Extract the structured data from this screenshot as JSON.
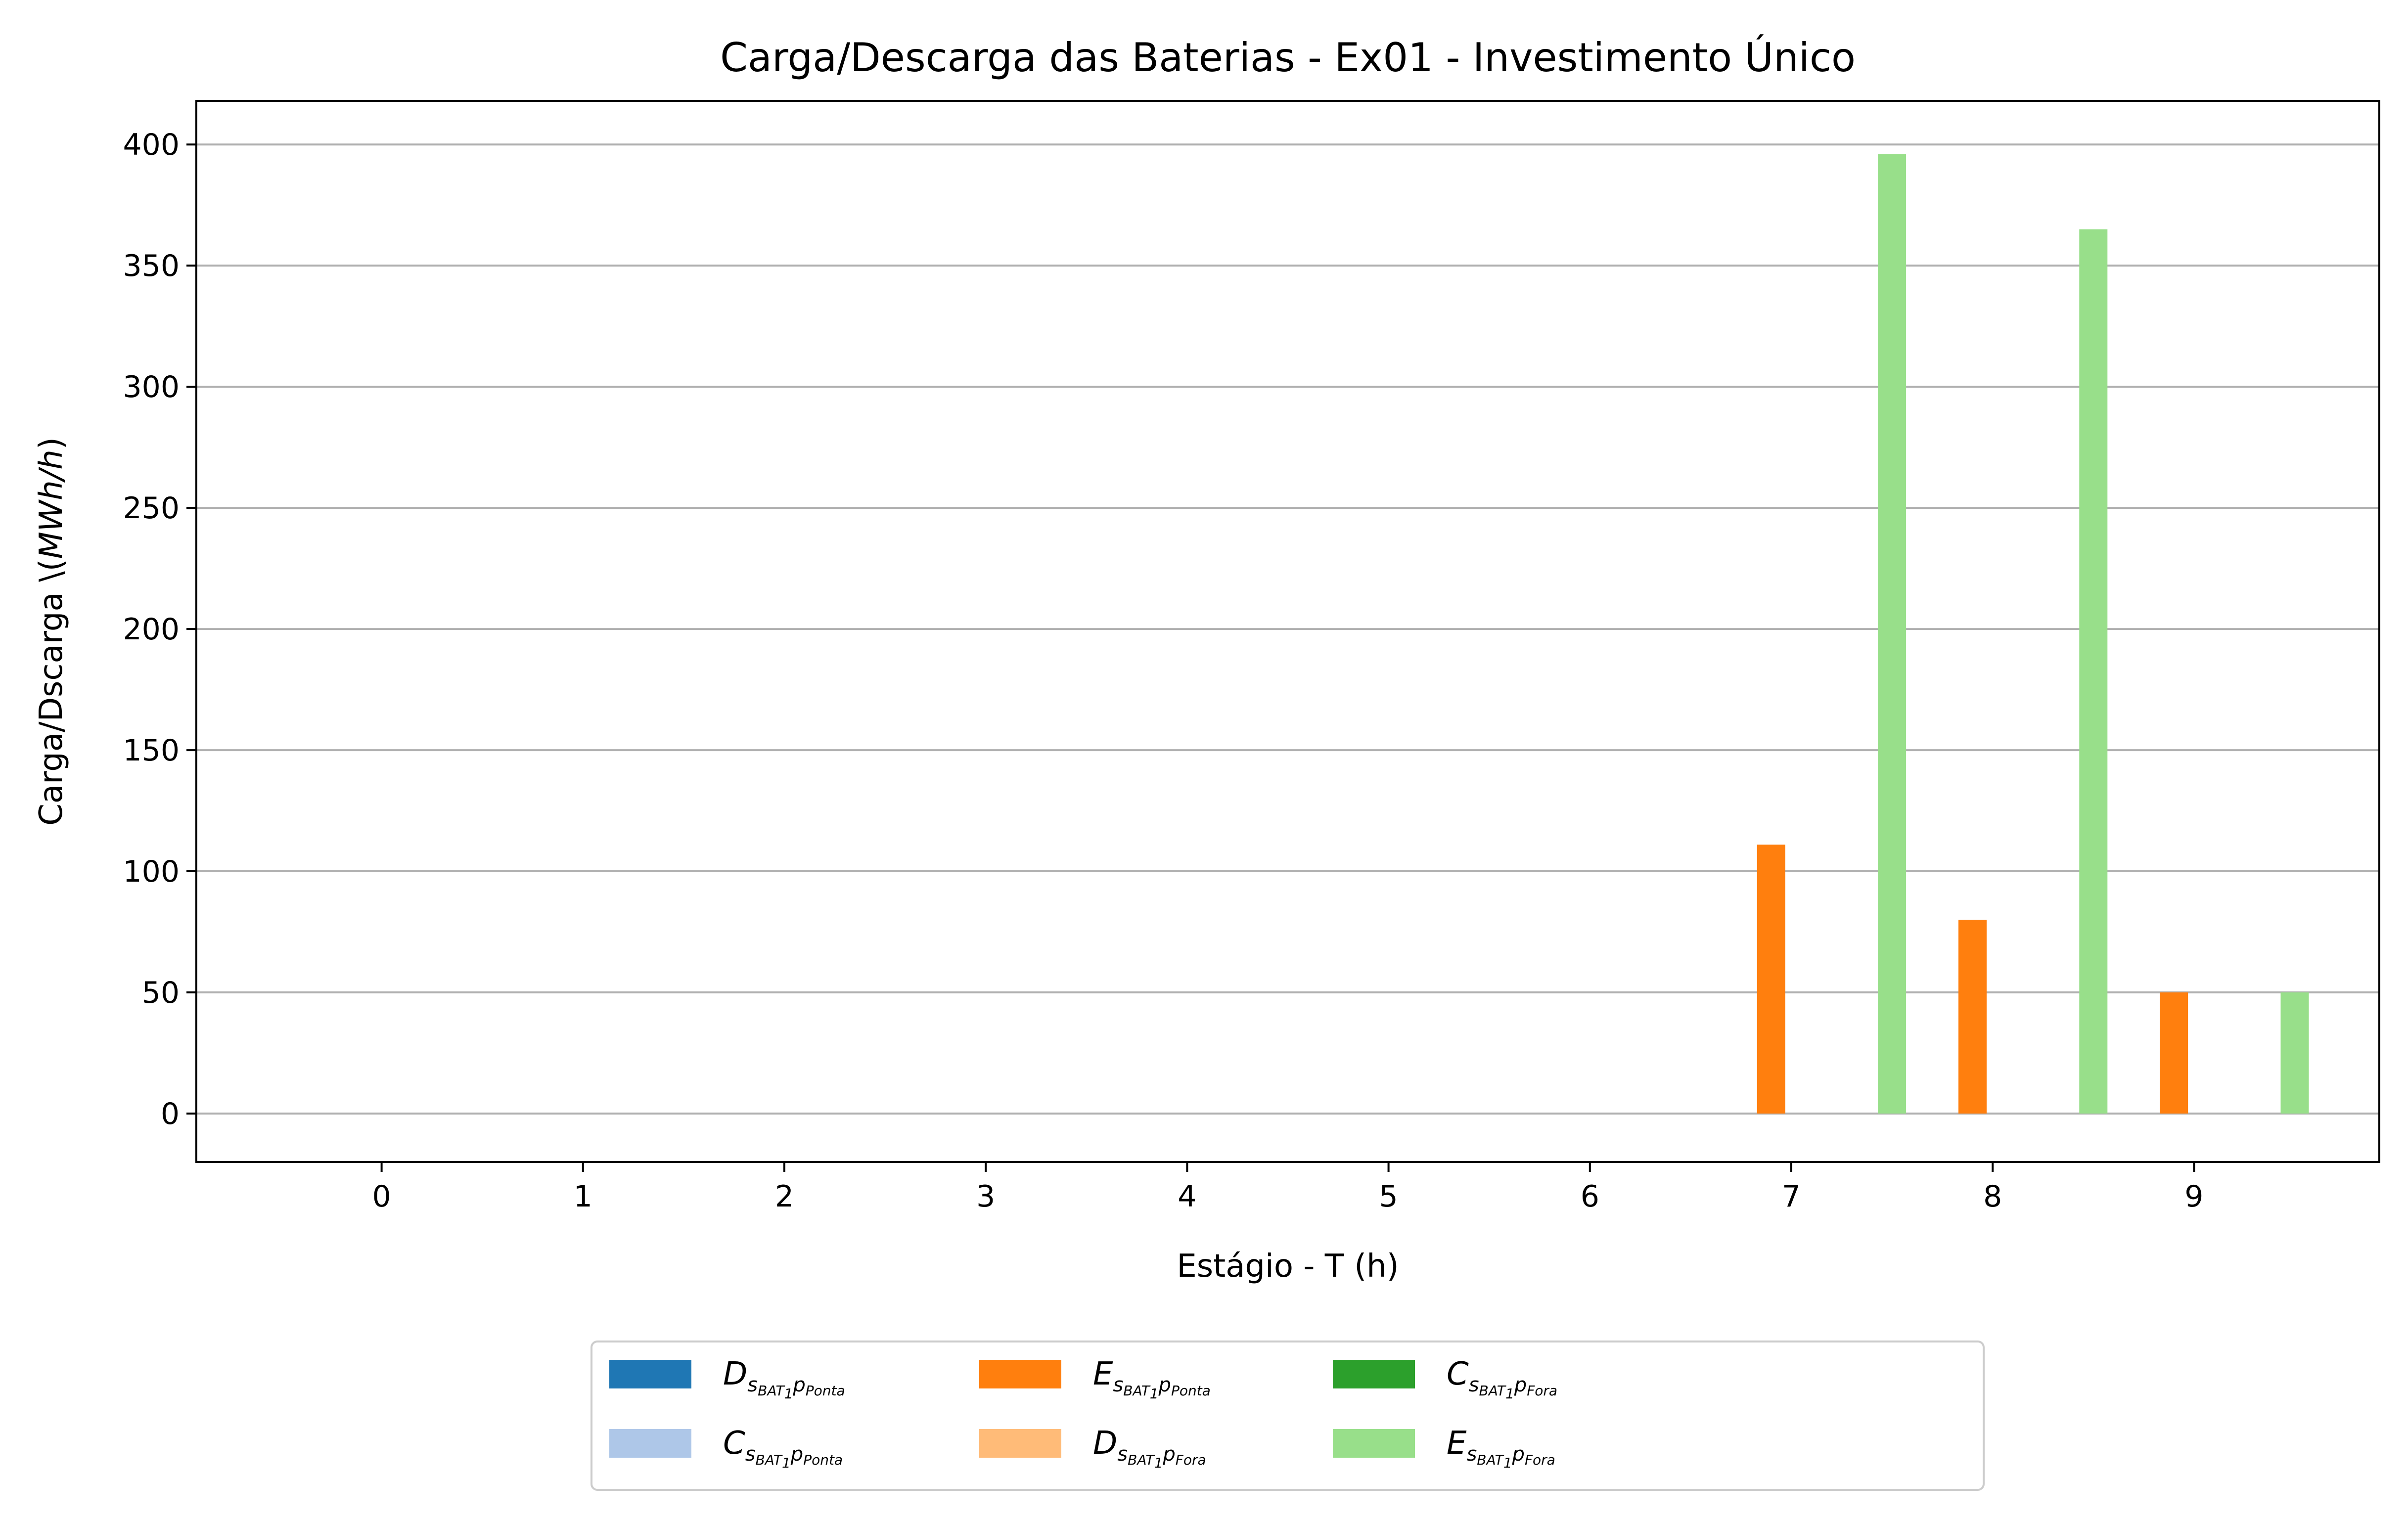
{
  "chart_data": {
    "type": "bar",
    "title": "Carga/Descarga das Baterias - Ex01 - Investimento Único",
    "xlabel": "Estágio - T (h)",
    "ylabel": "Carga/Dscarga \\($MWh/h$)",
    "categories": [
      "0",
      "1",
      "2",
      "3",
      "4",
      "5",
      "6",
      "7",
      "8",
      "9"
    ],
    "ylim": [
      -20,
      418
    ],
    "yticks": [
      0,
      50,
      100,
      150,
      200,
      250,
      300,
      350,
      400
    ],
    "grid": "horizontal",
    "legend_position": "bottom-center",
    "series": [
      {
        "name": "D_{s_{BAT_1}p_{Ponta}}",
        "label": {
          "main": "D",
          "sub1": "s",
          "sub2": "BAT",
          "sub3": "1",
          "sub4": "p",
          "sub5": "Ponta"
        },
        "color": "#1f77b4",
        "values": [
          0,
          0,
          0,
          0,
          0,
          0,
          0,
          0,
          0,
          0
        ]
      },
      {
        "name": "C_{s_{BAT_1}p_{Ponta}}",
        "label": {
          "main": "C",
          "sub1": "s",
          "sub2": "BAT",
          "sub3": "1",
          "sub4": "p",
          "sub5": "Ponta"
        },
        "color": "#aec7e8",
        "values": [
          0,
          0,
          0,
          0,
          0,
          0,
          0,
          0,
          0,
          0
        ]
      },
      {
        "name": "E_{s_{BAT_1}p_{Ponta}}",
        "label": {
          "main": "E",
          "sub1": "s",
          "sub2": "BAT",
          "sub3": "1",
          "sub4": "p",
          "sub5": "Ponta"
        },
        "color": "#ff7f0e",
        "values": [
          0,
          0,
          0,
          0,
          0,
          0,
          0,
          111,
          80,
          50
        ]
      },
      {
        "name": "D_{s_{BAT_1}p_{Fora}}",
        "label": {
          "main": "D",
          "sub1": "s",
          "sub2": "BAT",
          "sub3": "1",
          "sub4": "p",
          "sub5": "Fora"
        },
        "color": "#ffbb78",
        "values": [
          0,
          0,
          0,
          0,
          0,
          0,
          0,
          0,
          0,
          0
        ]
      },
      {
        "name": "C_{s_{BAT_1}p_{Fora}}",
        "label": {
          "main": "C",
          "sub1": "s",
          "sub2": "BAT",
          "sub3": "1",
          "sub4": "p",
          "sub5": "Fora"
        },
        "color": "#2ca02c",
        "values": [
          0,
          0,
          0,
          0,
          0,
          0,
          0,
          0,
          0,
          0
        ]
      },
      {
        "name": "E_{s_{BAT_1}p_{Fora}}",
        "label": {
          "main": "E",
          "sub1": "s",
          "sub2": "BAT",
          "sub3": "1",
          "sub4": "p",
          "sub5": "Fora"
        },
        "color": "#98df8a",
        "values": [
          0,
          0,
          0,
          0,
          0,
          0,
          0,
          396,
          365,
          50
        ]
      }
    ]
  }
}
